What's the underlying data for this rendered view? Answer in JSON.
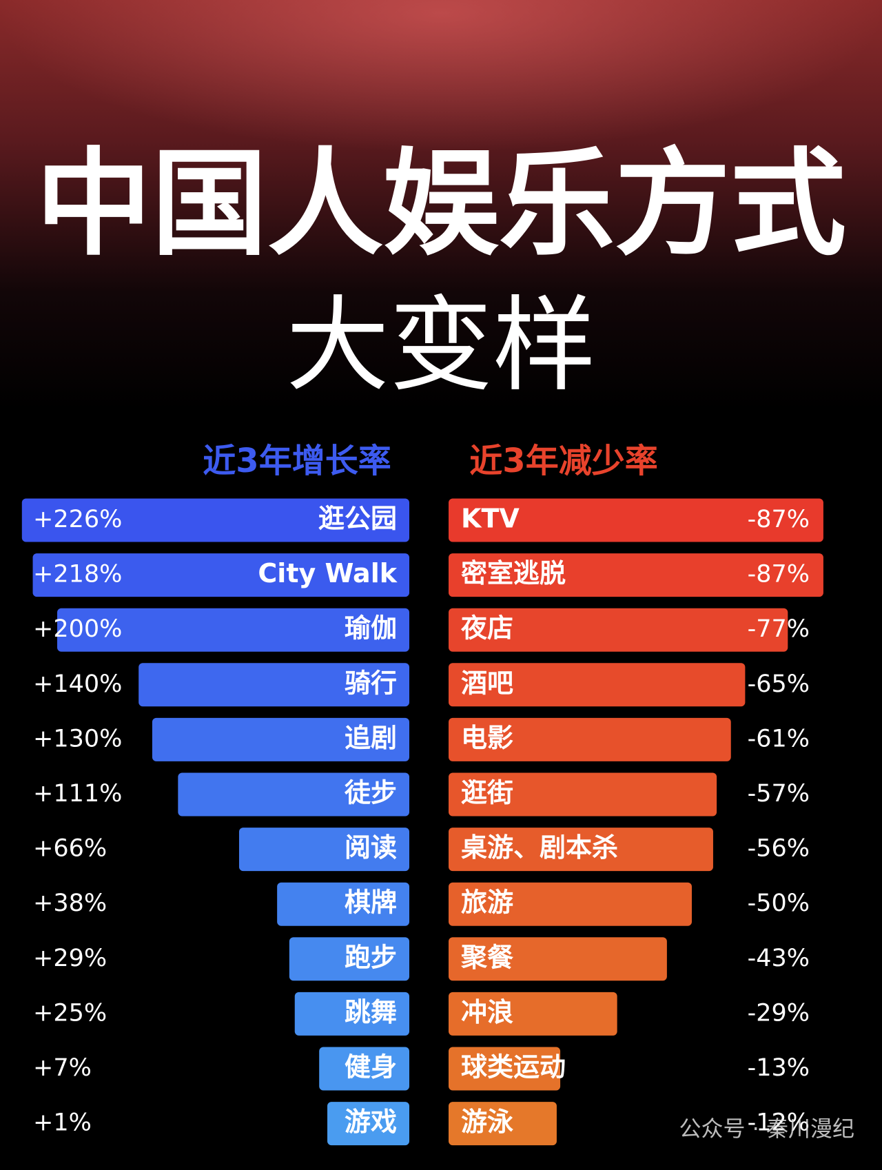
{
  "chart_data": {
    "type": "diverging-bar",
    "title": "中国人娱乐方式",
    "subtitle": "大变样",
    "series": [
      {
        "name": "近3年增长率",
        "colors": [
          "#3a55ee",
          "#4a9cf0"
        ],
        "categories": [
          "逛公园",
          "City Walk",
          "瑜伽",
          "骑行",
          "追剧",
          "徒步",
          "阅读",
          "棋牌",
          "跑步",
          "跳舞",
          "健身",
          "游戏"
        ],
        "values": [
          226,
          218,
          200,
          140,
          130,
          111,
          66,
          38,
          29,
          25,
          7,
          1
        ],
        "value_labels": [
          "+226%",
          "+218%",
          "+200%",
          "+140%",
          "+130%",
          "+111%",
          "+66%",
          "+38%",
          "+29%",
          "+25%",
          "+7%",
          "+1%"
        ]
      },
      {
        "name": "近3年减少率",
        "colors": [
          "#e83a2c",
          "#e5782a"
        ],
        "categories": [
          "KTV",
          "密室逃脱",
          "夜店",
          "酒吧",
          "电影",
          "逛街",
          "桌游、剧本杀",
          "旅游",
          "聚餐",
          "冲浪",
          "球类运动",
          "游泳"
        ],
        "values": [
          -87,
          -87,
          -77,
          -65,
          -61,
          -57,
          -56,
          -50,
          -43,
          -29,
          -13,
          -12
        ],
        "value_labels": [
          "-87%",
          "-87%",
          "-77%",
          "-65%",
          "-61%",
          "-57%",
          "-56%",
          "-50%",
          "-43%",
          "-29%",
          "-13%",
          "-12%"
        ]
      }
    ],
    "watermark": "公众号 · 秦川漫纪"
  }
}
